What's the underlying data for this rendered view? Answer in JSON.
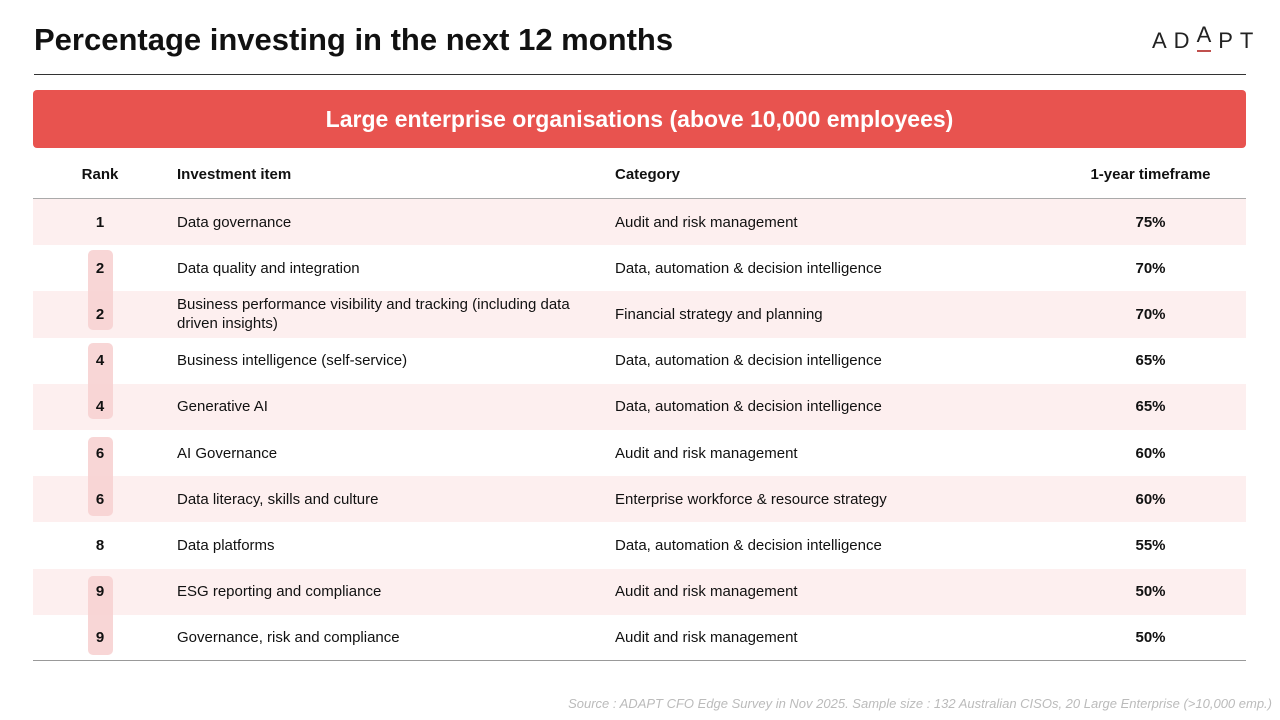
{
  "title": "Percentage investing in the next 12 months",
  "logo": {
    "l1": "AD",
    "l2": "A",
    "l3": "PT"
  },
  "banner": "Large enterprise organisations (above 10,000 employees)",
  "headers": {
    "rank": "Rank",
    "item": "Investment item",
    "category": "Category",
    "timeframe": "1-year timeframe"
  },
  "rows": [
    {
      "rank": "1",
      "item": "Data governance",
      "category": "Audit and risk management",
      "value": "75%"
    },
    {
      "rank": "2",
      "item": "Data quality and integration",
      "category": "Data, automation & decision intelligence",
      "value": "70%"
    },
    {
      "rank": "2",
      "item": "Business performance visibility and tracking (including data driven insights)",
      "category": "Financial strategy and planning",
      "value": "70%"
    },
    {
      "rank": "4",
      "item": "Business intelligence (self-service)",
      "category": "Data, automation & decision intelligence",
      "value": "65%"
    },
    {
      "rank": "4",
      "item": "Generative AI",
      "category": "Data, automation & decision intelligence",
      "value": "65%"
    },
    {
      "rank": "6",
      "item": "AI Governance",
      "category": "Audit and risk management",
      "value": "60%"
    },
    {
      "rank": "6",
      "item": "Data literacy, skills and culture",
      "category": "Enterprise workforce & resource strategy",
      "value": "60%"
    },
    {
      "rank": "8",
      "item": "Data platforms",
      "category": "Data, automation & decision intelligence",
      "value": "55%"
    },
    {
      "rank": "9",
      "item": "ESG reporting and compliance",
      "category": "Audit and risk management",
      "value": "50%"
    },
    {
      "rank": "9",
      "item": "Governance, risk and compliance",
      "category": "Audit and risk management",
      "value": "50%"
    }
  ],
  "source": "Source : ADAPT  CFO Edge Survey in Nov 2025. Sample size : 132 Australian CISOs, 20 Large Enterprise (>10,000 emp.)"
}
